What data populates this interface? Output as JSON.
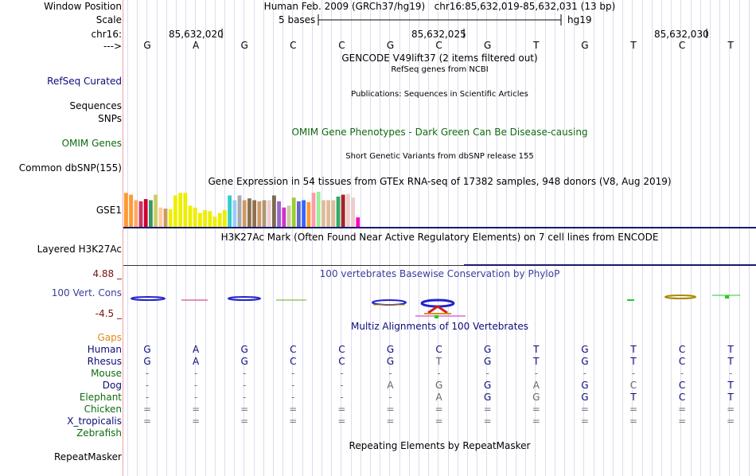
{
  "header": {
    "window_position_label": "Window Position",
    "window_position_value": "Human Feb. 2009 (GRCh37/hg19)   chr16:85,632,019-85,632,031 (13 bp)",
    "scale_label": "Scale",
    "scale_value": "5 bases",
    "scale_assembly": "hg19",
    "chrom_label": "chr16:",
    "positions": [
      "85,632,020",
      "85,632,025",
      "85,632,030"
    ],
    "arrow_label": "--->"
  },
  "bases": [
    "G",
    "A",
    "G",
    "C",
    "C",
    "G",
    "C",
    "G",
    "T",
    "G",
    "T",
    "C",
    "T"
  ],
  "tracks": {
    "gencode_title": "GENCODE V49lift37 (2 items filtered out)",
    "refseq_subtitle": "RefSeq genes from NCBI",
    "refseq_label": "RefSeq Curated",
    "publications_title": "Publications: Sequences in Scientific Articles",
    "sequences_label": "Sequences",
    "snps_label": "SNPs",
    "omim_title": "OMIM Gene Phenotypes - Dark Green Can Be Disease-causing",
    "omim_label": "OMIM Genes",
    "dbsnp_title": "Short Genetic Variants from dbSNP release 155",
    "dbsnp_label": "Common dbSNP(155)",
    "gtex_title": "Gene Expression in 54 tissues from GTEx RNA-seq of 17382 samples, 948 donors (V8, Aug 2019)",
    "gtex_label": "GSE1",
    "h3k27ac_title": "H3K27Ac Mark (Often Found Near Active Regulatory Elements) on 7 cell lines from ENCODE",
    "h3k27ac_label": "Layered H3K27Ac",
    "cons_max": "4.88 _",
    "cons_title": "100 vertebrates Basewise Conservation by PhyloP",
    "cons_label": "100 Vert. Cons",
    "cons_min": "-4.5 _",
    "multiz_title": "Multiz Alignments of 100 Vertebrates",
    "gaps_label": "Gaps",
    "repeat_title": "Repeating Elements by RepeatMasker",
    "repeat_label": "RepeatMasker"
  },
  "gtex_values": [
    0.95,
    0.9,
    0.75,
    0.72,
    0.78,
    0.75,
    0.9,
    0.55,
    0.52,
    0.5,
    0.88,
    0.95,
    0.95,
    0.6,
    0.55,
    0.4,
    0.48,
    0.45,
    0.3,
    0.4,
    0.48,
    0.88,
    0.75,
    0.88,
    0.75,
    0.8,
    0.75,
    0.72,
    0.75,
    0.75,
    0.88,
    0.72,
    0.55,
    0.6,
    0.82,
    0.72,
    0.75,
    0.7,
    0.95,
    0.98,
    0.75,
    0.75,
    0.75,
    0.85,
    0.9,
    0.92,
    0.82,
    0.28
  ],
  "gtex_colors": [
    "#ff9933",
    "#ff9933",
    "#ffaa66",
    "#cc3366",
    "#cc0033",
    "#339966",
    "#cccc66",
    "#ffcc99",
    "#cc9966",
    "#eeee00",
    "#eeee00",
    "#eeee00",
    "#eeee00",
    "#eeee00",
    "#eeee00",
    "#eeee00",
    "#eeee00",
    "#eeee00",
    "#eeee00",
    "#eeee00",
    "#eeee00",
    "#33cccc",
    "#99ccff",
    "#aaaaaa",
    "#cc9966",
    "#8f7150",
    "#8f7150",
    "#cc9966",
    "#aa9977",
    "#eecccc",
    "#7a6a50",
    "#9966cc",
    "#cc33cc",
    "#cccc99",
    "#99cc33",
    "#6666cc",
    "#3366ff",
    "#ff9933",
    "#ff99aa",
    "#99ee99",
    "#ddbb99",
    "#ddbb99",
    "#ddbb99",
    "#33aa66",
    "#aa2222",
    "#eecccc",
    "#eecccc",
    "#ff00bb"
  ],
  "species": [
    {
      "name": "Human",
      "color": "#0c0c78",
      "bases": [
        "G",
        "A",
        "G",
        "C",
        "C",
        "G",
        "C",
        "G",
        "T",
        "G",
        "T",
        "C",
        "T"
      ]
    },
    {
      "name": "Rhesus",
      "color": "#0c0c78",
      "bases": [
        "G",
        "A",
        "G",
        "C",
        "C",
        "G",
        "T",
        "G",
        "T",
        "G",
        "T",
        "C",
        "T"
      ]
    },
    {
      "name": "Mouse",
      "color": "#0f6b0f",
      "bases": [
        "-",
        "-",
        "-",
        "-",
        "-",
        "-",
        "-",
        "-",
        "-",
        "-",
        "-",
        "-",
        "-"
      ]
    },
    {
      "name": "Dog",
      "color": "#0c0c78",
      "bases": [
        "-",
        "-",
        "-",
        "-",
        "-",
        "A",
        "G",
        "G",
        "A",
        "G",
        "C",
        "C",
        "T"
      ]
    },
    {
      "name": "Elephant",
      "color": "#0f6b0f",
      "bases": [
        "-",
        "-",
        "-",
        "-",
        "-",
        "-",
        "A",
        "G",
        "G",
        "G",
        "T",
        "C",
        "T"
      ]
    },
    {
      "name": "Chicken",
      "color": "#0f6b0f",
      "bases": [
        "=",
        "=",
        "=",
        "=",
        "=",
        "=",
        "=",
        "=",
        "=",
        "=",
        "=",
        "=",
        "="
      ]
    },
    {
      "name": "X_tropicalis",
      "color": "#0c0c78",
      "bases": [
        "=",
        "=",
        "=",
        "=",
        "=",
        "=",
        "=",
        "=",
        "=",
        "=",
        "=",
        "=",
        "="
      ]
    },
    {
      "name": "Zebrafish",
      "color": "#0f6b0f",
      "bases": [
        "",
        "",
        "",
        "",
        "",
        "",
        "",
        "",
        "",
        "",
        "",
        "",
        ""
      ]
    }
  ]
}
